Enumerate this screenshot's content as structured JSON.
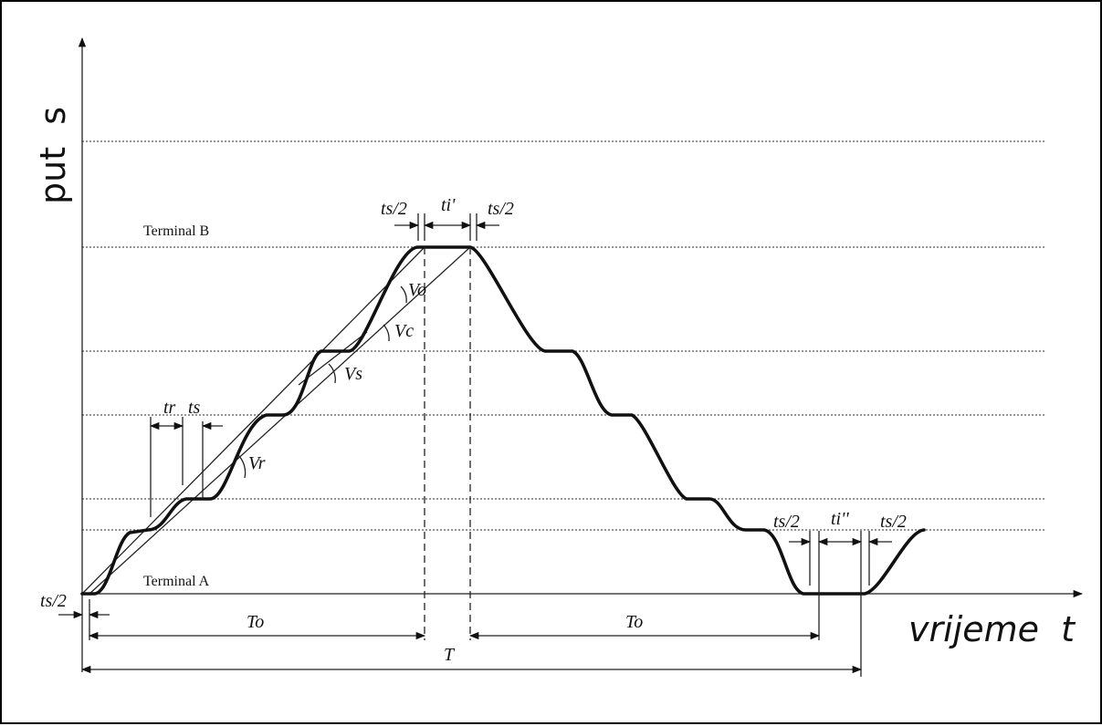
{
  "axes": {
    "y_label": "put  s",
    "x_label": "vrijeme  t"
  },
  "terminals": {
    "b": "Terminal B",
    "a": "Terminal A"
  },
  "annotations": {
    "ts_half_top_left": "ts/2",
    "ti_prime": "ti'",
    "ts_half_top_right": "ts/2",
    "tr": "tr",
    "ts_small": "ts",
    "v_o": "Vo",
    "v_c": "Vc",
    "v_s": "Vs",
    "v_r": "Vr",
    "ts_half_bottom_left": "ts/2",
    "ti_double_prime": "ti''",
    "ts_half_bottom_right": "ts/2",
    "ts_half_origin": "ts/2",
    "to_left": "To",
    "to_right": "To",
    "t_total": "T"
  },
  "colors": {
    "curve": "#111111",
    "grid": "#555555"
  }
}
